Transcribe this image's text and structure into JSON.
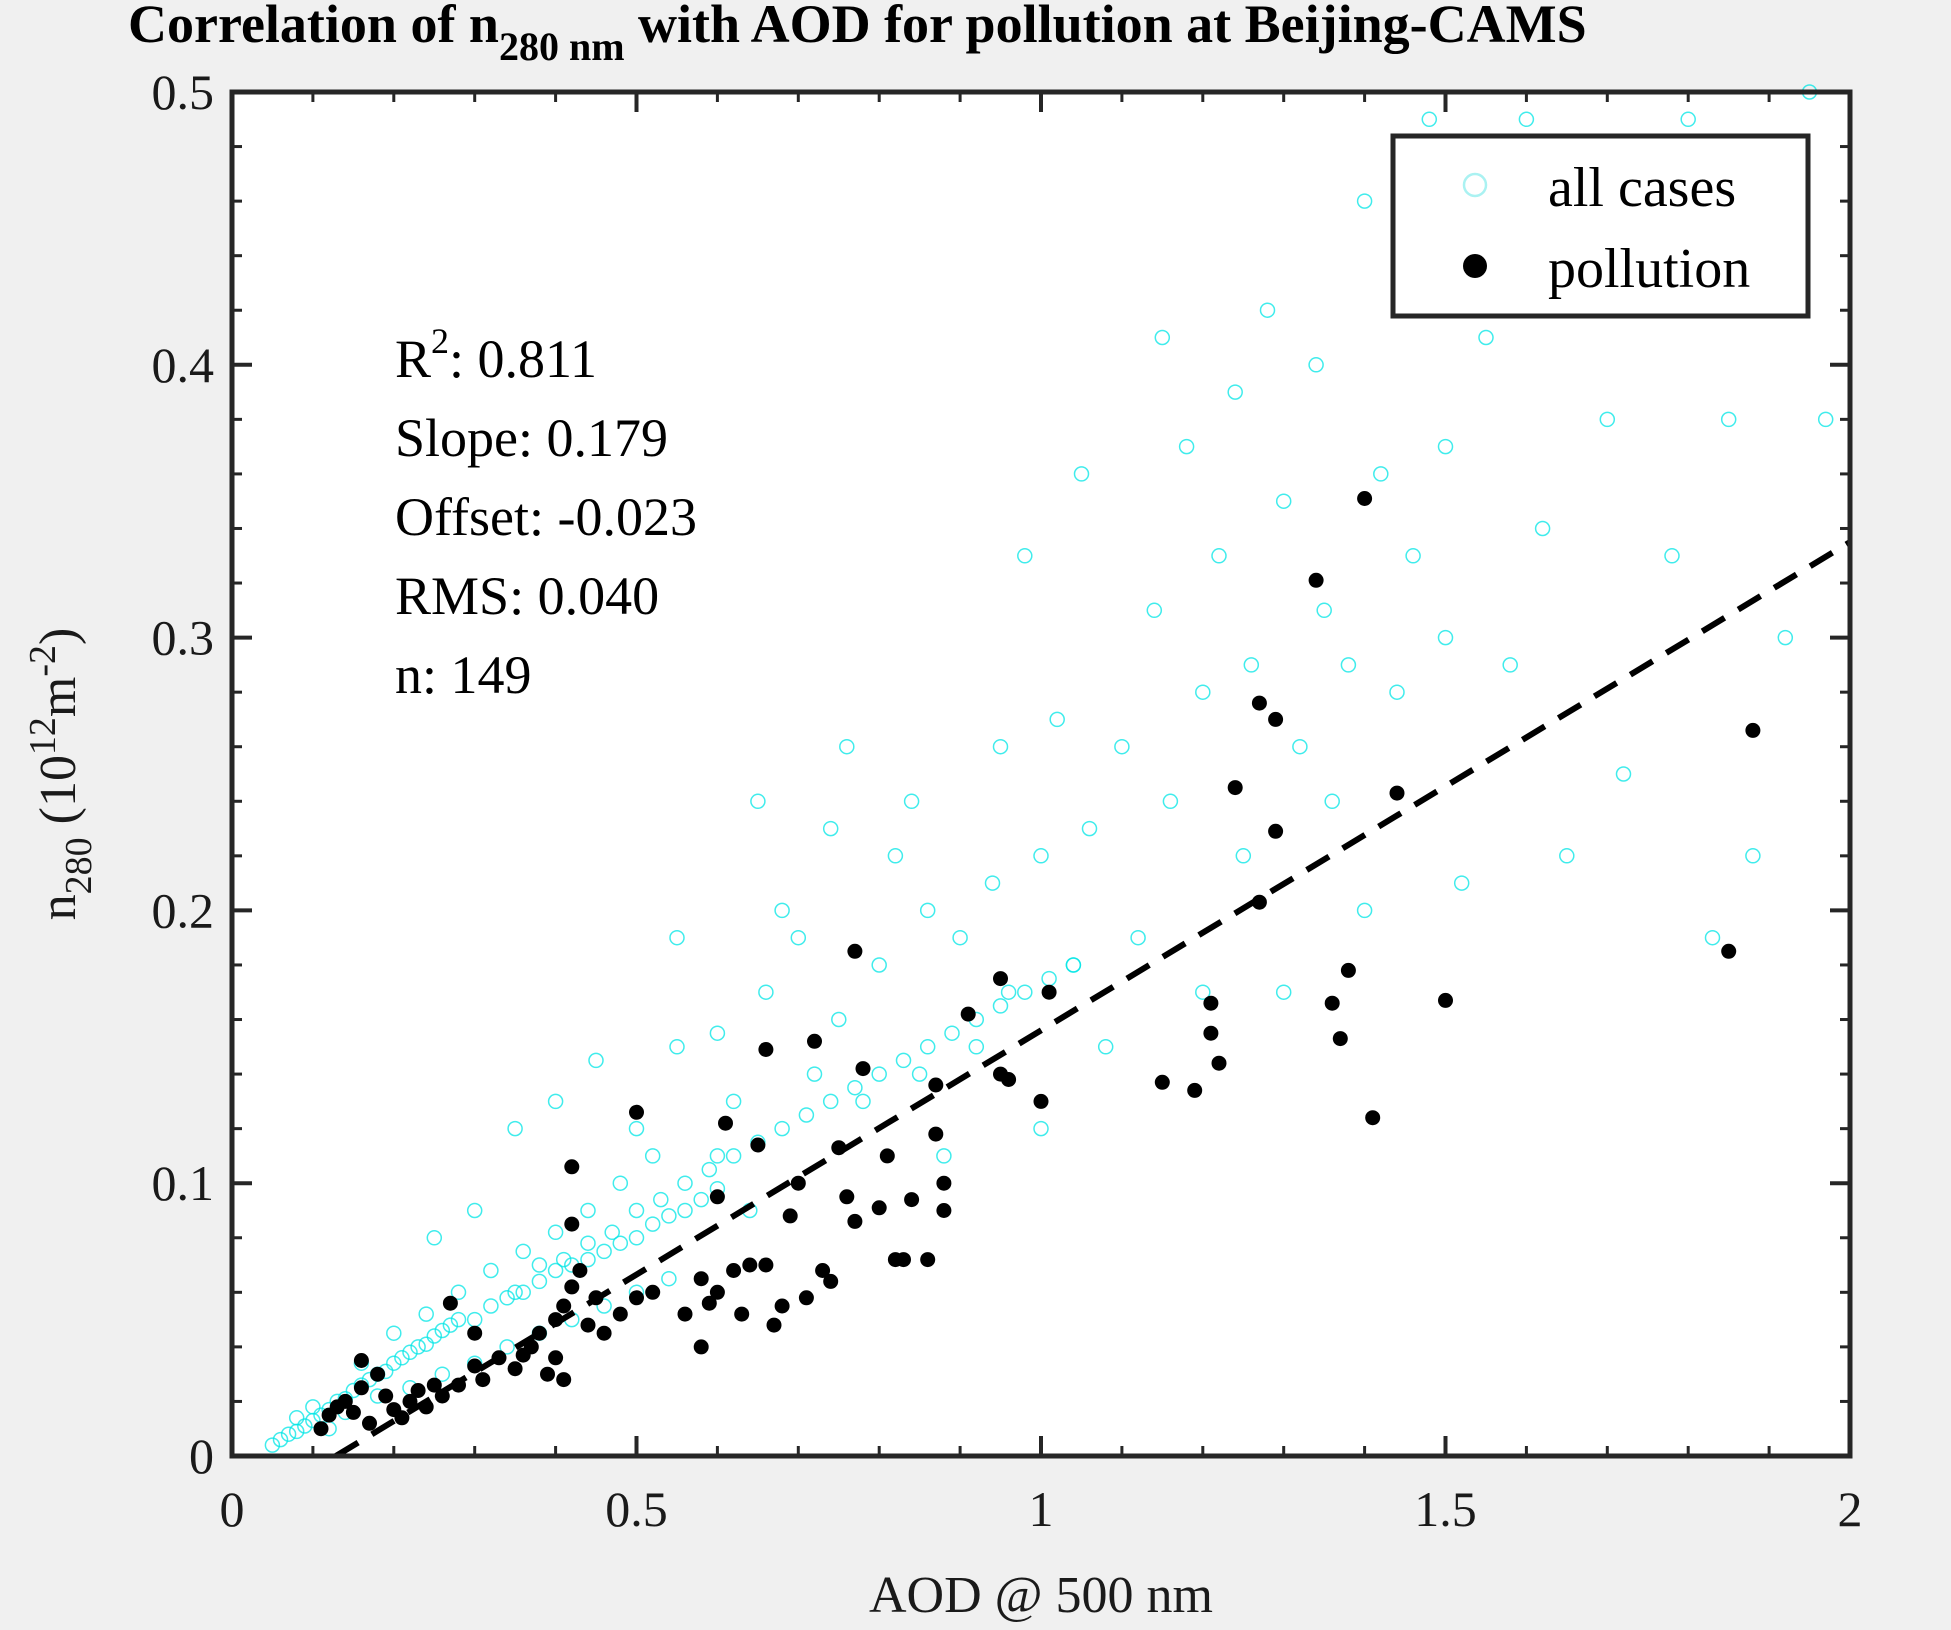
{
  "chart_data": {
    "type": "scatter",
    "title_main": "Correlation of n",
    "title_sub": "280 nm",
    "title_rest": " with AOD for pollution at Beijing-CAMS",
    "xlabel": "AOD @ 500 nm",
    "ylabel_main": "n",
    "ylabel_sub": "280",
    "ylabel_unit_open": " (10",
    "ylabel_unit_exp": "12",
    "ylabel_unit_mid": "m",
    "ylabel_unit_exp2": "-2",
    "ylabel_unit_close": ")",
    "xlim": [
      0,
      2
    ],
    "ylim": [
      0,
      0.5
    ],
    "xticks": [
      0,
      0.5,
      1,
      1.5,
      2
    ],
    "xtick_labels": [
      "0",
      "0.5",
      "1",
      "1.5",
      "2"
    ],
    "yticks": [
      0,
      0.1,
      0.2,
      0.3,
      0.4,
      0.5
    ],
    "ytick_labels": [
      "0",
      "0.1",
      "0.2",
      "0.3",
      "0.4",
      "0.5"
    ],
    "grid": false,
    "legend_position": "top-right",
    "legend": [
      "all cases",
      "pollution"
    ],
    "stats": {
      "r2_prefix": "R",
      "r2_exp": "2",
      "r2_value": ": 0.811",
      "slope": "Slope: 0.179",
      "offset": "Offset: -0.023",
      "rms": "RMS: 0.040",
      "n": "n:  149"
    },
    "fit_line": {
      "slope": 0.179,
      "offset": -0.023,
      "style": "dashed",
      "color": "#000000"
    },
    "colors": {
      "all_cases": "#00e5e5",
      "pollution": "#000000",
      "background": "#f0f0f0",
      "plot_area": "#ffffff"
    },
    "series": [
      {
        "name": "all cases",
        "marker": "open-circle",
        "points": [
          [
            0.05,
            0.004
          ],
          [
            0.06,
            0.006
          ],
          [
            0.07,
            0.008
          ],
          [
            0.08,
            0.009
          ],
          [
            0.09,
            0.011
          ],
          [
            0.1,
            0.013
          ],
          [
            0.11,
            0.015
          ],
          [
            0.12,
            0.017
          ],
          [
            0.13,
            0.02
          ],
          [
            0.14,
            0.021
          ],
          [
            0.15,
            0.024
          ],
          [
            0.16,
            0.026
          ],
          [
            0.17,
            0.028
          ],
          [
            0.18,
            0.03
          ],
          [
            0.19,
            0.031
          ],
          [
            0.2,
            0.034
          ],
          [
            0.21,
            0.036
          ],
          [
            0.22,
            0.038
          ],
          [
            0.23,
            0.04
          ],
          [
            0.24,
            0.041
          ],
          [
            0.25,
            0.044
          ],
          [
            0.26,
            0.046
          ],
          [
            0.27,
            0.048
          ],
          [
            0.28,
            0.05
          ],
          [
            0.08,
            0.014
          ],
          [
            0.1,
            0.018
          ],
          [
            0.12,
            0.01
          ],
          [
            0.14,
            0.016
          ],
          [
            0.16,
            0.034
          ],
          [
            0.18,
            0.022
          ],
          [
            0.2,
            0.045
          ],
          [
            0.22,
            0.025
          ],
          [
            0.24,
            0.052
          ],
          [
            0.26,
            0.03
          ],
          [
            0.28,
            0.06
          ],
          [
            0.3,
            0.034
          ],
          [
            0.32,
            0.068
          ],
          [
            0.34,
            0.04
          ],
          [
            0.36,
            0.075
          ],
          [
            0.38,
            0.045
          ],
          [
            0.4,
            0.082
          ],
          [
            0.42,
            0.05
          ],
          [
            0.44,
            0.09
          ],
          [
            0.46,
            0.055
          ],
          [
            0.48,
            0.1
          ],
          [
            0.5,
            0.06
          ],
          [
            0.52,
            0.11
          ],
          [
            0.54,
            0.065
          ],
          [
            0.3,
            0.05
          ],
          [
            0.32,
            0.055
          ],
          [
            0.34,
            0.058
          ],
          [
            0.36,
            0.06
          ],
          [
            0.38,
            0.064
          ],
          [
            0.4,
            0.068
          ],
          [
            0.42,
            0.07
          ],
          [
            0.44,
            0.072
          ],
          [
            0.46,
            0.075
          ],
          [
            0.48,
            0.078
          ],
          [
            0.5,
            0.08
          ],
          [
            0.52,
            0.085
          ],
          [
            0.54,
            0.088
          ],
          [
            0.56,
            0.09
          ],
          [
            0.58,
            0.094
          ],
          [
            0.6,
            0.098
          ],
          [
            0.25,
            0.08
          ],
          [
            0.3,
            0.09
          ],
          [
            0.35,
            0.12
          ],
          [
            0.4,
            0.13
          ],
          [
            0.45,
            0.145
          ],
          [
            0.5,
            0.12
          ],
          [
            0.55,
            0.15
          ],
          [
            0.55,
            0.19
          ],
          [
            0.6,
            0.155
          ],
          [
            0.6,
            0.11
          ],
          [
            0.62,
            0.13
          ],
          [
            0.64,
            0.09
          ],
          [
            0.65,
            0.24
          ],
          [
            0.66,
            0.17
          ],
          [
            0.68,
            0.2
          ],
          [
            0.7,
            0.19
          ],
          [
            0.72,
            0.14
          ],
          [
            0.74,
            0.23
          ],
          [
            0.75,
            0.16
          ],
          [
            0.76,
            0.26
          ],
          [
            0.78,
            0.13
          ],
          [
            0.8,
            0.18
          ],
          [
            0.82,
            0.22
          ],
          [
            0.84,
            0.24
          ],
          [
            0.85,
            0.14
          ],
          [
            0.86,
            0.2
          ],
          [
            0.88,
            0.11
          ],
          [
            0.9,
            0.19
          ],
          [
            0.92,
            0.15
          ],
          [
            0.94,
            0.21
          ],
          [
            0.95,
            0.26
          ],
          [
            0.96,
            0.17
          ],
          [
            0.98,
            0.33
          ],
          [
            1.0,
            0.22
          ],
          [
            1.0,
            0.12
          ],
          [
            1.02,
            0.27
          ],
          [
            1.04,
            0.18
          ],
          [
            1.05,
            0.36
          ],
          [
            1.06,
            0.23
          ],
          [
            1.08,
            0.15
          ],
          [
            1.1,
            0.26
          ],
          [
            1.12,
            0.19
          ],
          [
            1.14,
            0.31
          ],
          [
            1.15,
            0.41
          ],
          [
            1.16,
            0.24
          ],
          [
            1.18,
            0.37
          ],
          [
            1.2,
            0.28
          ],
          [
            1.2,
            0.17
          ],
          [
            1.22,
            0.33
          ],
          [
            1.24,
            0.39
          ],
          [
            1.25,
            0.22
          ],
          [
            1.26,
            0.29
          ],
          [
            1.28,
            0.42
          ],
          [
            1.3,
            0.35
          ],
          [
            1.3,
            0.17
          ],
          [
            1.32,
            0.26
          ],
          [
            1.34,
            0.4
          ],
          [
            1.35,
            0.31
          ],
          [
            1.36,
            0.24
          ],
          [
            1.38,
            0.29
          ],
          [
            1.4,
            0.46
          ],
          [
            1.4,
            0.2
          ],
          [
            1.42,
            0.36
          ],
          [
            1.44,
            0.28
          ],
          [
            1.45,
            0.43
          ],
          [
            1.46,
            0.33
          ],
          [
            1.48,
            0.49
          ],
          [
            1.5,
            0.3
          ],
          [
            1.5,
            0.37
          ],
          [
            1.52,
            0.21
          ],
          [
            1.55,
            0.41
          ],
          [
            1.58,
            0.29
          ],
          [
            1.6,
            0.49
          ],
          [
            1.62,
            0.34
          ],
          [
            1.65,
            0.22
          ],
          [
            1.68,
            0.45
          ],
          [
            1.7,
            0.38
          ],
          [
            1.72,
            0.25
          ],
          [
            1.75,
            0.43
          ],
          [
            1.78,
            0.33
          ],
          [
            1.8,
            0.49
          ],
          [
            1.83,
            0.19
          ],
          [
            1.85,
            0.38
          ],
          [
            1.88,
            0.22
          ],
          [
            1.9,
            0.43
          ],
          [
            1.92,
            0.3
          ],
          [
            1.95,
            0.5
          ],
          [
            1.97,
            0.38
          ],
          [
            0.35,
            0.06
          ],
          [
            0.38,
            0.07
          ],
          [
            0.41,
            0.072
          ],
          [
            0.44,
            0.078
          ],
          [
            0.47,
            0.082
          ],
          [
            0.5,
            0.09
          ],
          [
            0.53,
            0.094
          ],
          [
            0.56,
            0.1
          ],
          [
            0.59,
            0.105
          ],
          [
            0.62,
            0.11
          ],
          [
            0.65,
            0.115
          ],
          [
            0.68,
            0.12
          ],
          [
            0.71,
            0.125
          ],
          [
            0.74,
            0.13
          ],
          [
            0.77,
            0.135
          ],
          [
            0.8,
            0.14
          ],
          [
            0.83,
            0.145
          ],
          [
            0.86,
            0.15
          ],
          [
            0.89,
            0.155
          ],
          [
            0.92,
            0.16
          ],
          [
            0.95,
            0.165
          ],
          [
            0.98,
            0.17
          ],
          [
            1.01,
            0.175
          ],
          [
            1.04,
            0.18
          ]
        ]
      },
      {
        "name": "pollution",
        "marker": "filled-circle",
        "points": [
          [
            0.11,
            0.01
          ],
          [
            0.12,
            0.015
          ],
          [
            0.13,
            0.018
          ],
          [
            0.14,
            0.02
          ],
          [
            0.15,
            0.016
          ],
          [
            0.16,
            0.025
          ],
          [
            0.16,
            0.035
          ],
          [
            0.17,
            0.012
          ],
          [
            0.18,
            0.03
          ],
          [
            0.19,
            0.022
          ],
          [
            0.2,
            0.017
          ],
          [
            0.21,
            0.014
          ],
          [
            0.22,
            0.02
          ],
          [
            0.23,
            0.024
          ],
          [
            0.24,
            0.018
          ],
          [
            0.25,
            0.026
          ],
          [
            0.26,
            0.022
          ],
          [
            0.27,
            0.056
          ],
          [
            0.28,
            0.026
          ],
          [
            0.3,
            0.033
          ],
          [
            0.3,
            0.045
          ],
          [
            0.31,
            0.028
          ],
          [
            0.33,
            0.036
          ],
          [
            0.35,
            0.032
          ],
          [
            0.36,
            0.037
          ],
          [
            0.37,
            0.04
          ],
          [
            0.38,
            0.045
          ],
          [
            0.39,
            0.03
          ],
          [
            0.4,
            0.05
          ],
          [
            0.4,
            0.036
          ],
          [
            0.41,
            0.055
          ],
          [
            0.41,
            0.028
          ],
          [
            0.42,
            0.062
          ],
          [
            0.42,
            0.085
          ],
          [
            0.42,
            0.106
          ],
          [
            0.43,
            0.068
          ],
          [
            0.44,
            0.048
          ],
          [
            0.45,
            0.058
          ],
          [
            0.46,
            0.045
          ],
          [
            0.48,
            0.052
          ],
          [
            0.5,
            0.058
          ],
          [
            0.5,
            0.126
          ],
          [
            0.52,
            0.06
          ],
          [
            0.56,
            0.052
          ],
          [
            0.58,
            0.065
          ],
          [
            0.58,
            0.04
          ],
          [
            0.59,
            0.056
          ],
          [
            0.6,
            0.06
          ],
          [
            0.6,
            0.095
          ],
          [
            0.61,
            0.122
          ],
          [
            0.62,
            0.068
          ],
          [
            0.63,
            0.052
          ],
          [
            0.64,
            0.07
          ],
          [
            0.65,
            0.114
          ],
          [
            0.66,
            0.149
          ],
          [
            0.66,
            0.07
          ],
          [
            0.67,
            0.048
          ],
          [
            0.68,
            0.055
          ],
          [
            0.69,
            0.088
          ],
          [
            0.7,
            0.1
          ],
          [
            0.71,
            0.058
          ],
          [
            0.72,
            0.152
          ],
          [
            0.73,
            0.068
          ],
          [
            0.74,
            0.064
          ],
          [
            0.75,
            0.113
          ],
          [
            0.76,
            0.095
          ],
          [
            0.77,
            0.086
          ],
          [
            0.77,
            0.185
          ],
          [
            0.78,
            0.142
          ],
          [
            0.8,
            0.091
          ],
          [
            0.81,
            0.11
          ],
          [
            0.82,
            0.072
          ],
          [
            0.83,
            0.072
          ],
          [
            0.84,
            0.094
          ],
          [
            0.86,
            0.072
          ],
          [
            0.87,
            0.118
          ],
          [
            0.87,
            0.136
          ],
          [
            0.88,
            0.1
          ],
          [
            0.88,
            0.09
          ],
          [
            0.91,
            0.162
          ],
          [
            0.95,
            0.175
          ],
          [
            0.95,
            0.14
          ],
          [
            0.96,
            0.138
          ],
          [
            1.0,
            0.13
          ],
          [
            1.01,
            0.17
          ],
          [
            1.15,
            0.137
          ],
          [
            1.19,
            0.134
          ],
          [
            1.21,
            0.155
          ],
          [
            1.21,
            0.166
          ],
          [
            1.22,
            0.144
          ],
          [
            1.24,
            0.245
          ],
          [
            1.27,
            0.276
          ],
          [
            1.27,
            0.203
          ],
          [
            1.29,
            0.229
          ],
          [
            1.29,
            0.27
          ],
          [
            1.34,
            0.321
          ],
          [
            1.36,
            0.166
          ],
          [
            1.37,
            0.153
          ],
          [
            1.38,
            0.178
          ],
          [
            1.4,
            0.351
          ],
          [
            1.41,
            0.124
          ],
          [
            1.44,
            0.243
          ],
          [
            1.5,
            0.167
          ],
          [
            1.85,
            0.185
          ],
          [
            1.88,
            0.266
          ]
        ]
      }
    ]
  }
}
